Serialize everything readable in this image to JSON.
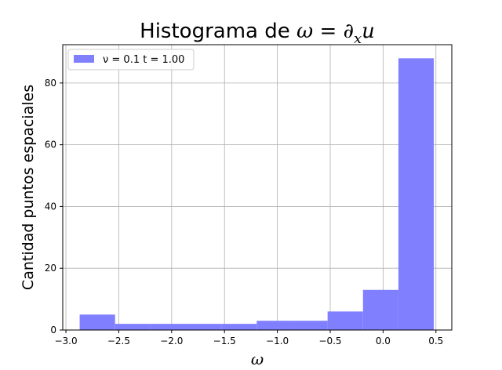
{
  "chart_data": {
    "type": "bar",
    "title_prefix": "Histograma de ",
    "title_math": "ω = ∂",
    "title_math_sub": "x",
    "title_math_tail": "u",
    "xlabel": "ω",
    "ylabel": "Cantidad puntos espaciales",
    "xlim": [
      -3.03,
      0.65
    ],
    "ylim": [
      0,
      92.4
    ],
    "xticks": [
      -3.0,
      -2.5,
      -2.0,
      -1.5,
      -1.0,
      -0.5,
      0.0,
      0.5
    ],
    "xtick_labels": [
      "−3.0",
      "−2.5",
      "−2.0",
      "−1.5",
      "−1.0",
      "−0.5",
      "0.0",
      "0.5"
    ],
    "yticks": [
      0,
      20,
      40,
      60,
      80
    ],
    "ytick_labels": [
      "0",
      "20",
      "40",
      "60",
      "80"
    ],
    "grid": true,
    "legend_position": "top-left",
    "legend_label": "ν = 0.1 t = 1.00",
    "bar_color": "#8080ff",
    "bins": [
      {
        "x0": -2.87,
        "x1": -2.535,
        "count": 5
      },
      {
        "x0": -2.535,
        "x1": -2.2,
        "count": 2
      },
      {
        "x0": -2.2,
        "x1": -1.865,
        "count": 2
      },
      {
        "x0": -1.865,
        "x1": -1.53,
        "count": 2
      },
      {
        "x0": -1.53,
        "x1": -1.195,
        "count": 2
      },
      {
        "x0": -1.195,
        "x1": -0.86,
        "count": 3
      },
      {
        "x0": -0.86,
        "x1": -0.525,
        "count": 3
      },
      {
        "x0": -0.525,
        "x1": -0.19,
        "count": 6
      },
      {
        "x0": -0.19,
        "x1": 0.145,
        "count": 13
      },
      {
        "x0": 0.145,
        "x1": 0.48,
        "count": 88
      }
    ]
  }
}
